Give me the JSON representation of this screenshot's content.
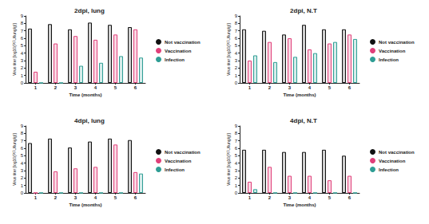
{
  "chart_data": [
    {
      "type": "bar",
      "title": "2dpi, lung",
      "x_label": "Time (months)",
      "y_label": "Virus titer [log10(PFU/lung/g)]",
      "categories": [
        "1",
        "2",
        "3",
        "4",
        "5",
        "6"
      ],
      "series": [
        {
          "name": "Not vaccination",
          "color": "#111111",
          "values": [
            7.3,
            7.9,
            7.2,
            8.1,
            7.8,
            7.5
          ]
        },
        {
          "name": "Vaccination",
          "color": "#e0407a",
          "values": [
            1.5,
            5.3,
            6.3,
            5.8,
            6.5,
            7.2
          ]
        },
        {
          "name": "Infection",
          "color": "#2f9e95",
          "values": [
            0,
            0,
            2.3,
            2.7,
            3.6,
            3.4
          ]
        }
      ],
      "ylim": [
        0,
        9
      ],
      "yticks": [
        0,
        1,
        2,
        3,
        4,
        5,
        6,
        7,
        8,
        9
      ],
      "legend": "right"
    },
    {
      "type": "bar",
      "title": "2dpi, N.T",
      "x_label": "Time (months)",
      "y_label": "Virus titer [log10(PFU/lung/g)]",
      "categories": [
        "1",
        "2",
        "3",
        "4",
        "5",
        "6"
      ],
      "series": [
        {
          "name": "Not vaccination",
          "color": "#111111",
          "values": [
            7.2,
            7.0,
            6.5,
            7.8,
            7.2,
            7.2
          ]
        },
        {
          "name": "Vaccination",
          "color": "#e0407a",
          "values": [
            3.0,
            5.5,
            6.0,
            4.5,
            5.3,
            6.5
          ]
        },
        {
          "name": "Infection",
          "color": "#2f9e95",
          "values": [
            3.7,
            2.8,
            3.5,
            4.0,
            5.5,
            5.9
          ]
        }
      ],
      "ylim": [
        0,
        9
      ],
      "yticks": [
        0,
        1,
        2,
        3,
        4,
        5,
        6,
        7,
        8,
        9
      ],
      "legend": "right"
    },
    {
      "type": "bar",
      "title": "4dpi, lung",
      "x_label": "Time (months)",
      "y_label": "Virus titer [log10(PFU/lung/g)]",
      "categories": [
        "1",
        "2",
        "3",
        "4",
        "5",
        "6"
      ],
      "series": [
        {
          "name": "Not vaccination",
          "color": "#111111",
          "values": [
            6.7,
            7.3,
            6.1,
            6.9,
            7.3,
            7.1
          ]
        },
        {
          "name": "Vaccination",
          "color": "#e0407a",
          "values": [
            0,
            2.9,
            3.3,
            3.5,
            6.5,
            2.8
          ]
        },
        {
          "name": "Infection",
          "color": "#2f9e95",
          "values": [
            0,
            0,
            0,
            0,
            0,
            2.6
          ]
        }
      ],
      "ylim": [
        0,
        9
      ],
      "yticks": [
        0,
        1,
        2,
        3,
        4,
        5,
        6,
        7,
        8,
        9
      ],
      "legend": "right"
    },
    {
      "type": "bar",
      "title": "4dpi, N.T",
      "x_label": "Time (months)",
      "y_label": "Virus titer [log10(PFU/lung/g)]",
      "categories": [
        "1",
        "2",
        "3",
        "4",
        "5",
        "6"
      ],
      "series": [
        {
          "name": "Not vaccination",
          "color": "#111111",
          "values": [
            5.8,
            5.8,
            5.5,
            5.5,
            5.8,
            5.0
          ]
        },
        {
          "name": "Vaccination",
          "color": "#e0407a",
          "values": [
            1.5,
            3.5,
            2.3,
            2.3,
            1.7,
            2.3
          ]
        },
        {
          "name": "Infection",
          "color": "#2f9e95",
          "values": [
            0.5,
            0,
            0,
            0,
            0,
            0
          ]
        }
      ],
      "ylim": [
        0,
        9
      ],
      "yticks": [
        0,
        1,
        2,
        3,
        4,
        5,
        6,
        7,
        8,
        9
      ],
      "legend": "right"
    }
  ]
}
